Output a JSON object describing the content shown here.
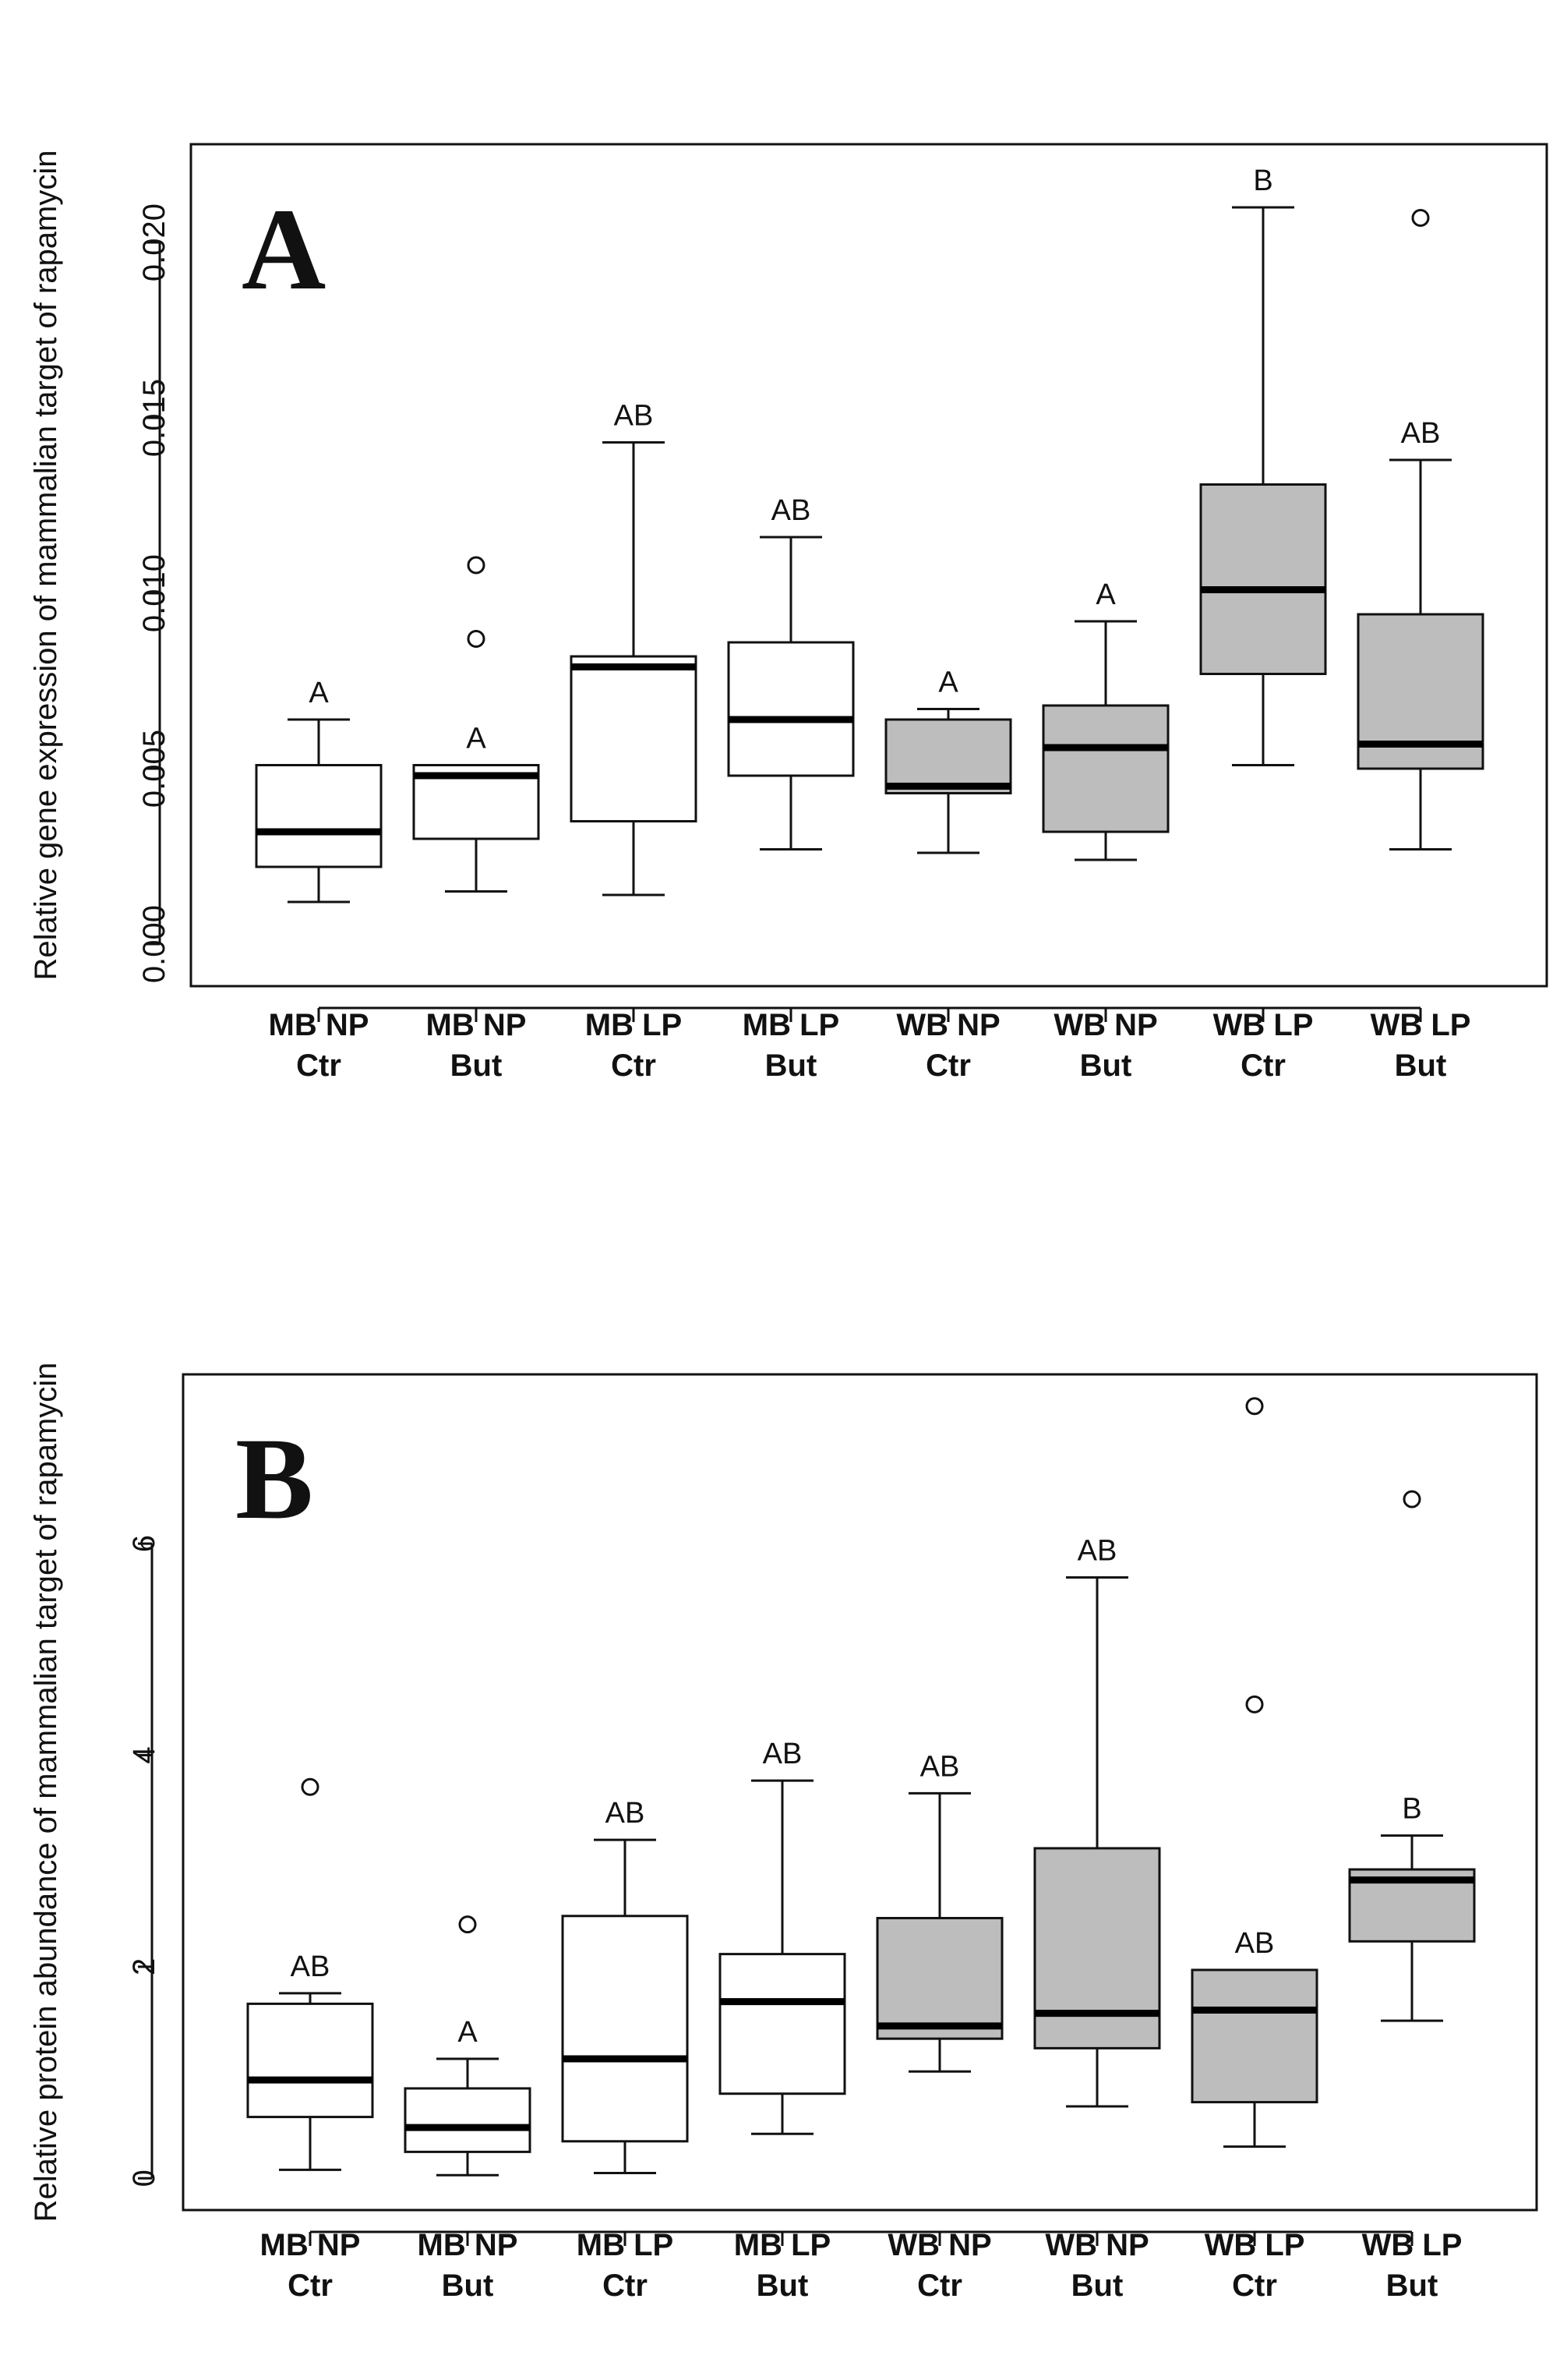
{
  "chart_data": [
    {
      "type": "boxplot",
      "panel_label": "A",
      "ylabel": "Relative gene expression of mammalian target of rapamycin",
      "ylim": [
        -0.0012,
        0.0228
      ],
      "yticks": [
        "0.000",
        "0.005",
        "0.010",
        "0.015",
        "0.020"
      ],
      "ytick_values": [
        0,
        0.005,
        0.01,
        0.015,
        0.02
      ],
      "categories": [
        {
          "line1": "MB NP",
          "line2": "Ctr",
          "fill": "#ffffff"
        },
        {
          "line1": "MB NP",
          "line2": "But",
          "fill": "#ffffff"
        },
        {
          "line1": "MB LP",
          "line2": "Ctr",
          "fill": "#ffffff"
        },
        {
          "line1": "MB LP",
          "line2": "But",
          "fill": "#ffffff"
        },
        {
          "line1": "WB NP",
          "line2": "Ctr",
          "fill": "#bdbdbd"
        },
        {
          "line1": "WB NP",
          "line2": "But",
          "fill": "#bdbdbd"
        },
        {
          "line1": "WB LP",
          "line2": "Ctr",
          "fill": "#bdbdbd"
        },
        {
          "line1": "WB LP",
          "line2": "But",
          "fill": "#bdbdbd"
        }
      ],
      "boxes": [
        {
          "min": 0.0012,
          "q1": 0.0022,
          "median": 0.0032,
          "q3": 0.0051,
          "max": 0.0064,
          "outliers": [],
          "letter": "A"
        },
        {
          "min": 0.0015,
          "q1": 0.003,
          "median": 0.0048,
          "q3": 0.0051,
          "max": 0.0051,
          "outliers": [
            0.0087,
            0.0108
          ],
          "letter": "A"
        },
        {
          "min": 0.0014,
          "q1": 0.0035,
          "median": 0.0079,
          "q3": 0.0082,
          "max": 0.0143,
          "outliers": [],
          "letter": "AB"
        },
        {
          "min": 0.0027,
          "q1": 0.0048,
          "median": 0.0064,
          "q3": 0.0086,
          "max": 0.0116,
          "outliers": [],
          "letter": "AB"
        },
        {
          "min": 0.0026,
          "q1": 0.0043,
          "median": 0.0045,
          "q3": 0.0064,
          "max": 0.0067,
          "outliers": [],
          "letter": "A"
        },
        {
          "min": 0.0024,
          "q1": 0.0032,
          "median": 0.0056,
          "q3": 0.0068,
          "max": 0.0092,
          "outliers": [],
          "letter": "A"
        },
        {
          "min": 0.0051,
          "q1": 0.0077,
          "median": 0.0101,
          "q3": 0.0131,
          "max": 0.021,
          "outliers": [],
          "letter": "B"
        },
        {
          "min": 0.0027,
          "q1": 0.005,
          "median": 0.0057,
          "q3": 0.0094,
          "max": 0.0138,
          "outliers": [
            0.0207
          ],
          "letter": "AB"
        }
      ]
    },
    {
      "type": "boxplot",
      "panel_label": "B",
      "ylabel": "Relative protein abundance of mammalian target of rapamycin",
      "ylim": [
        -0.3,
        7.6
      ],
      "yticks": [
        "0",
        "2",
        "4",
        "6"
      ],
      "ytick_values": [
        0,
        2,
        4,
        6
      ],
      "categories": [
        {
          "line1": "MB NP",
          "line2": "Ctr",
          "fill": "#ffffff"
        },
        {
          "line1": "MB NP",
          "line2": "But",
          "fill": "#ffffff"
        },
        {
          "line1": "MB LP",
          "line2": "Ctr",
          "fill": "#ffffff"
        },
        {
          "line1": "MB LP",
          "line2": "But",
          "fill": "#ffffff"
        },
        {
          "line1": "WB NP",
          "line2": "Ctr",
          "fill": "#bdbdbd"
        },
        {
          "line1": "WB NP",
          "line2": "But",
          "fill": "#bdbdbd"
        },
        {
          "line1": "WB LP",
          "line2": "Ctr",
          "fill": "#bdbdbd"
        },
        {
          "line1": "WB LP",
          "line2": "But",
          "fill": "#bdbdbd"
        }
      ],
      "boxes": [
        {
          "min": 0.08,
          "q1": 0.58,
          "median": 0.93,
          "q3": 1.65,
          "max": 1.75,
          "outliers": [
            3.7
          ],
          "letter": "AB"
        },
        {
          "min": 0.03,
          "q1": 0.25,
          "median": 0.48,
          "q3": 0.85,
          "max": 1.13,
          "outliers": [
            2.4
          ],
          "letter": "A"
        },
        {
          "min": 0.05,
          "q1": 0.35,
          "median": 1.13,
          "q3": 2.48,
          "max": 3.2,
          "outliers": [],
          "letter": "AB"
        },
        {
          "min": 0.42,
          "q1": 0.8,
          "median": 1.67,
          "q3": 2.12,
          "max": 3.76,
          "outliers": [],
          "letter": "AB"
        },
        {
          "min": 1.01,
          "q1": 1.32,
          "median": 1.44,
          "q3": 2.46,
          "max": 3.64,
          "outliers": [],
          "letter": "AB"
        },
        {
          "min": 0.68,
          "q1": 1.23,
          "median": 1.56,
          "q3": 3.12,
          "max": 5.68,
          "outliers": [],
          "letter": "AB"
        },
        {
          "min": 0.3,
          "q1": 0.72,
          "median": 1.59,
          "q3": 1.97,
          "max": 1.97,
          "outliers": [
            4.48,
            7.3
          ],
          "letter": "AB"
        },
        {
          "min": 1.49,
          "q1": 2.24,
          "median": 2.82,
          "q3": 2.92,
          "max": 3.24,
          "outliers": [
            6.42
          ],
          "letter": "B"
        }
      ]
    }
  ]
}
